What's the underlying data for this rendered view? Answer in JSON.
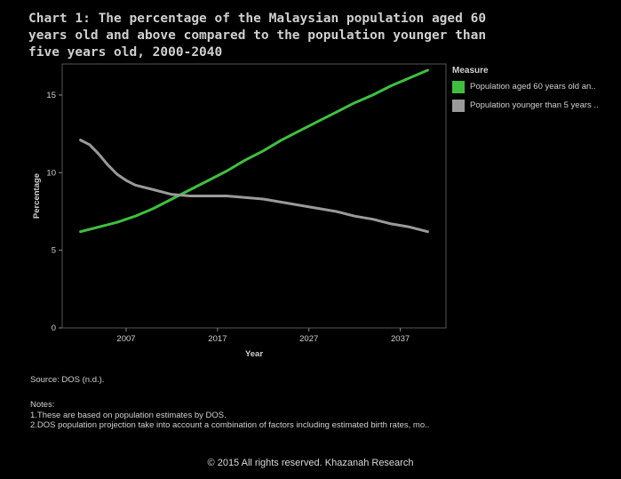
{
  "title_lines": [
    "Chart 1: The percentage of the Malaysian population aged 60",
    "years old and above compared to the population younger than",
    "five years old, 2000-2040"
  ],
  "legend": {
    "title": "Measure",
    "items": [
      {
        "label": "Population aged 60 years old an..",
        "color": "#3fbf3f"
      },
      {
        "label": "Population younger than 5 years ..",
        "color": "#9a9a9a"
      }
    ]
  },
  "source": "Source: DOS (n.d.).",
  "notes": {
    "title": "Notes:",
    "lines": [
      "1.These are based on population estimates by DOS.",
      "2.DOS population projection take into account a combination of factors including estimated birth rates, mo.."
    ]
  },
  "copyright": "© 2015 All rights reserved. Khazanah Research",
  "chart_data": {
    "type": "line",
    "title": "Chart 1: The percentage of the Malaysian population aged 60 years old and above compared to the population younger than five years old, 2000-2040",
    "xlabel": "Year",
    "ylabel": "Percentage",
    "xlim": [
      2000,
      2042
    ],
    "ylim": [
      0,
      17
    ],
    "x_ticks": [
      2007,
      2017,
      2027,
      2037
    ],
    "y_ticks": [
      0,
      5,
      10,
      15
    ],
    "grid": "none",
    "legend_position": "right",
    "series": [
      {
        "name": "Population aged 60 years old an..",
        "color": "#3fbf3f",
        "x": [
          2002,
          2004,
          2006,
          2008,
          2010,
          2012,
          2014,
          2016,
          2018,
          2020,
          2022,
          2024,
          2026,
          2028,
          2030,
          2032,
          2034,
          2036,
          2038,
          2040
        ],
        "y": [
          6.2,
          6.5,
          6.8,
          7.2,
          7.7,
          8.3,
          8.9,
          9.5,
          10.1,
          10.8,
          11.4,
          12.1,
          12.7,
          13.3,
          13.9,
          14.5,
          15.0,
          15.6,
          16.1,
          16.6
        ]
      },
      {
        "name": "Population younger than 5 years ..",
        "color": "#9a9a9a",
        "x": [
          2002,
          2003,
          2004,
          2005,
          2006,
          2007,
          2008,
          2010,
          2012,
          2014,
          2016,
          2018,
          2020,
          2022,
          2024,
          2026,
          2028,
          2030,
          2032,
          2034,
          2036,
          2038,
          2040
        ],
        "y": [
          12.1,
          11.8,
          11.2,
          10.5,
          9.9,
          9.5,
          9.2,
          8.9,
          8.6,
          8.5,
          8.5,
          8.5,
          8.4,
          8.3,
          8.1,
          7.9,
          7.7,
          7.5,
          7.2,
          7.0,
          6.7,
          6.5,
          6.2
        ]
      }
    ]
  }
}
